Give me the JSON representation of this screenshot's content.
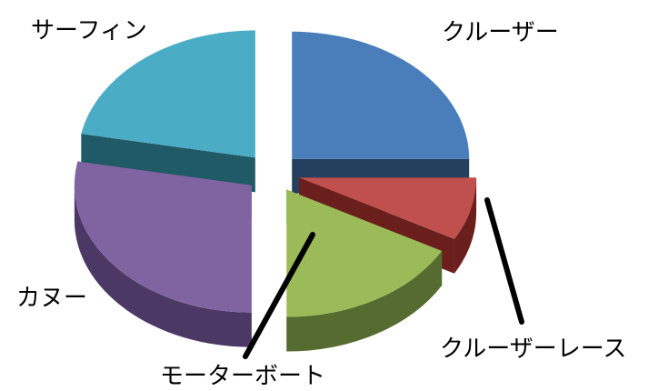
{
  "chart_data": {
    "type": "pie",
    "title": "",
    "categories": [
      "クルーザー",
      "クルーザーレース",
      "モーターボート",
      "カヌー",
      "サーフィン"
    ],
    "values": [
      25,
      8,
      17,
      28,
      22
    ],
    "colors": {
      "top": [
        "#4A7EBB",
        "#C0504D",
        "#9BBB59",
        "#8064A2",
        "#4BACC6"
      ],
      "side": [
        "#253F5E",
        "#6A1F1D",
        "#556B2F",
        "#4B3864",
        "#1F5A66"
      ]
    },
    "exploded": true,
    "three_d": true
  }
}
